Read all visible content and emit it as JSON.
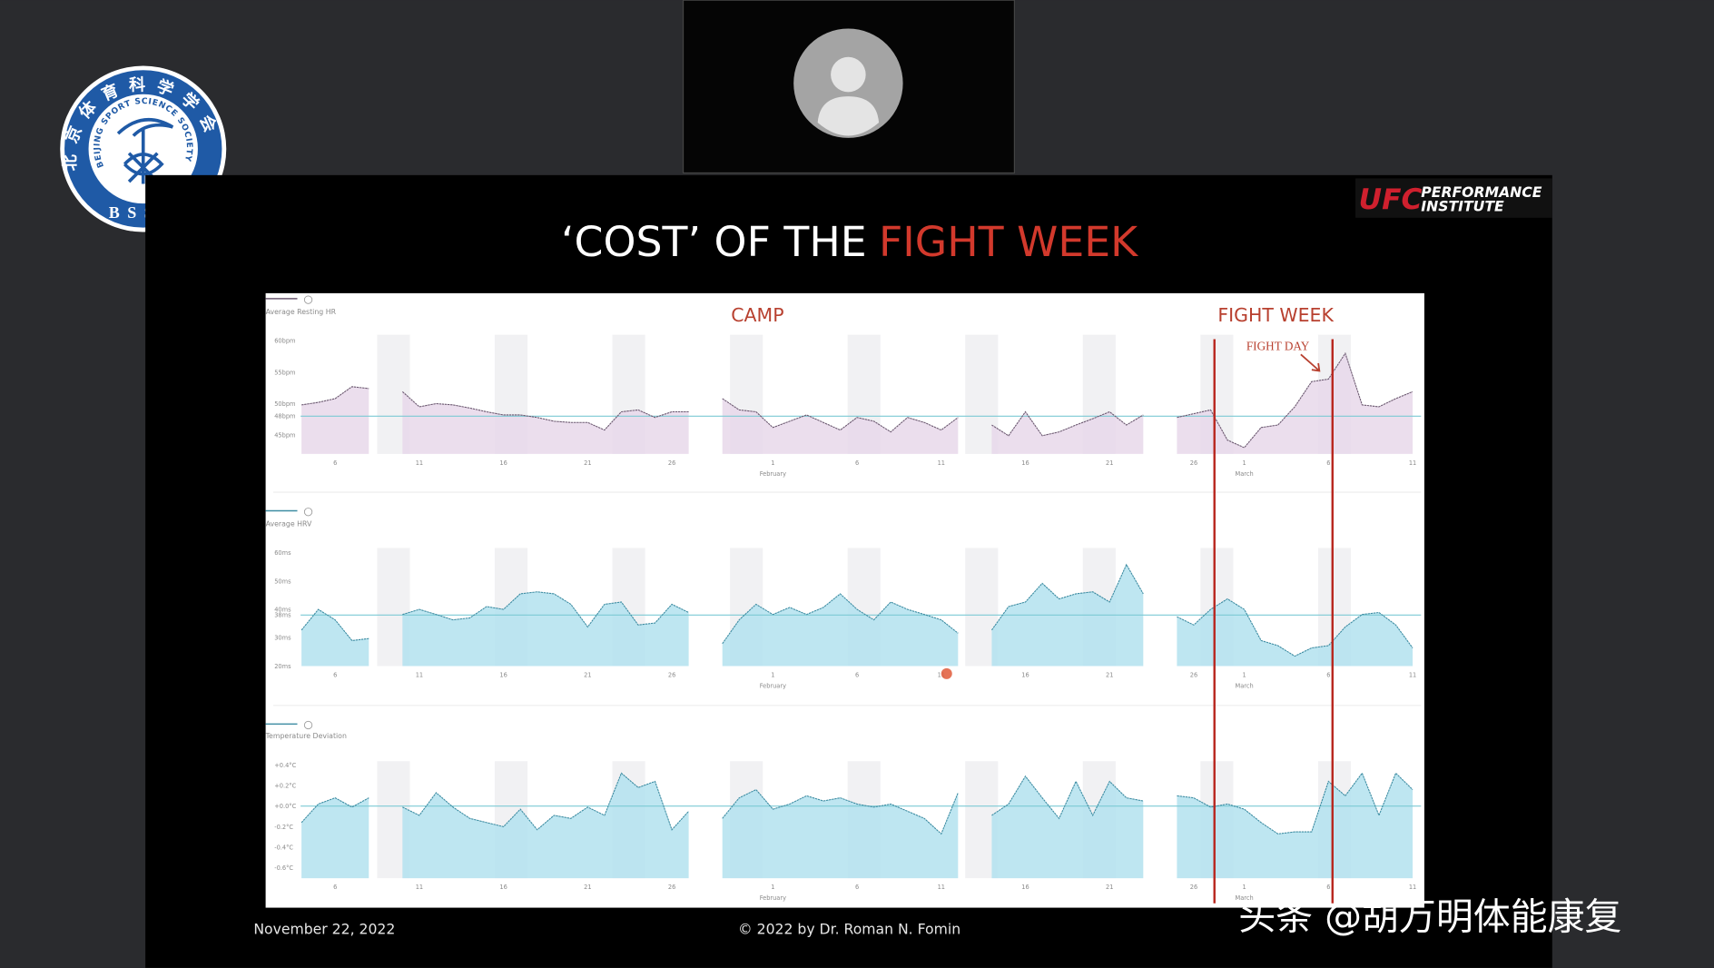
{
  "logo": {
    "chinese": "北京体育科学学会",
    "english": "BEIJING SPORT SCIENCE SOCIETY",
    "abbr": "BSSS"
  },
  "slide": {
    "brand": "UFC",
    "brand_line1": "PERFORMANCE",
    "brand_line2": "INSTITUTE",
    "title": "‘COST’ OF THE",
    "title_highlight": "FIGHT WEEK",
    "camp": "CAMP",
    "fight_week": "FIGHT WEEK",
    "fight_day": "FIGHT DAY",
    "date": "November 22, 2022",
    "copyright": "© 2022 by Dr. Roman N. Fomin"
  },
  "watermark": "头条 @胡万明体能康复",
  "chart_data": [
    {
      "type": "area",
      "title": "Average Resting HR",
      "color": "#e7d8ea",
      "line_color": "#6b5870",
      "reference": 48,
      "x": [
        4,
        5,
        6,
        7,
        8,
        9,
        10,
        11,
        12,
        13,
        14,
        15,
        16,
        17,
        18,
        19,
        20,
        21,
        22,
        23,
        24,
        25,
        26,
        27,
        28,
        29,
        30,
        31,
        32,
        33,
        34,
        35,
        36,
        37,
        38,
        39,
        40,
        41,
        42,
        43,
        44,
        45,
        46,
        47,
        48,
        49,
        50,
        51,
        52,
        53,
        54,
        55,
        56,
        57,
        58,
        59,
        60,
        61,
        62,
        63,
        64,
        65,
        66,
        67,
        68,
        69,
        70
      ],
      "values": [
        49.8,
        50.2,
        50.8,
        52.7,
        52.4,
        null,
        51.9,
        49.5,
        50,
        49.8,
        49.3,
        48.7,
        48.2,
        48.2,
        47.8,
        47.2,
        47,
        47,
        45.8,
        48.7,
        49,
        47.8,
        48.7,
        48.7,
        null,
        50.8,
        49,
        48.7,
        46.2,
        47.2,
        48.2,
        47,
        45.8,
        47.8,
        47.2,
        45.5,
        47.8,
        47,
        45.8,
        47.8,
        null,
        46.6,
        44.9,
        48.7,
        44.9,
        45.5,
        46.6,
        47.6,
        48.7,
        46.6,
        48.2,
        null,
        47.8,
        48.4,
        49,
        44.2,
        43,
        46.2,
        46.6,
        49.5,
        53.5,
        53.9,
        58,
        49.8,
        49.5,
        50.8,
        51.9
      ],
      "xlim": [
        2,
        70.5
      ],
      "ylim": [
        42,
        62
      ],
      "xticks": [
        6,
        11,
        16,
        21,
        26,
        {
          "value": 32,
          "label": "1"
        },
        {
          "value": 37,
          "label": "6"
        },
        {
          "value": 42,
          "label": "11"
        },
        {
          "value": 47,
          "label": "16"
        },
        {
          "value": 52,
          "label": "21"
        },
        {
          "value": 57,
          "label": "26"
        },
        {
          "value": 60,
          "label": "1"
        },
        {
          "value": 65,
          "label": "6"
        },
        {
          "value": 70,
          "label": "11"
        }
      ],
      "month_ticks": [
        {
          "value": 32,
          "label": "February"
        },
        {
          "value": 60,
          "label": "March"
        }
      ],
      "yticks": [
        {
          "value": 60,
          "label": "60bpm"
        },
        {
          "value": 55,
          "label": "55bpm"
        },
        {
          "value": 50,
          "label": "50bpm"
        },
        {
          "value": 48,
          "label": "48bpm"
        },
        {
          "value": 45,
          "label": "45bpm"
        }
      ]
    },
    {
      "type": "area",
      "title": "Average HRV",
      "color": "#b3e2ee",
      "line_color": "#3d8ca2",
      "reference": 38,
      "x": [
        4,
        5,
        6,
        7,
        8,
        9,
        10,
        11,
        12,
        13,
        14,
        15,
        16,
        17,
        18,
        19,
        20,
        21,
        22,
        23,
        24,
        25,
        26,
        27,
        28,
        29,
        30,
        31,
        32,
        33,
        34,
        35,
        36,
        37,
        38,
        39,
        40,
        41,
        42,
        43,
        44,
        45,
        46,
        47,
        48,
        49,
        50,
        51,
        52,
        53,
        54,
        55,
        56,
        57,
        58,
        59,
        60,
        61,
        62,
        63,
        64,
        65,
        66,
        67,
        68,
        69,
        70
      ],
      "values": [
        32.7,
        40,
        36.3,
        29,
        29.7,
        null,
        38.2,
        40,
        38.2,
        36.3,
        37,
        41,
        40,
        45.5,
        46.2,
        45.5,
        41.8,
        33.8,
        41.8,
        42.6,
        34.5,
        35.2,
        41.8,
        38.9,
        null,
        27.9,
        36.3,
        41.8,
        38.2,
        40.7,
        38.2,
        40.7,
        45.5,
        40,
        36.3,
        42.6,
        40,
        38.2,
        36.3,
        31.6,
        null,
        32.7,
        41,
        42.6,
        49.2,
        43.7,
        45.5,
        46.2,
        42.6,
        55.8,
        45.5,
        null,
        37.4,
        34.5,
        40,
        43.7,
        40,
        29,
        27.2,
        23.5,
        26.4,
        27.2,
        33.8,
        38.2,
        38.9,
        34.5,
        26.4
      ],
      "xlim": [
        2,
        70.5
      ],
      "ylim": [
        20,
        64
      ],
      "xticks": [
        6,
        11,
        16,
        21,
        26,
        {
          "value": 32,
          "label": "1"
        },
        {
          "value": 37,
          "label": "6"
        },
        {
          "value": 42,
          "label": "11"
        },
        {
          "value": 47,
          "label": "16"
        },
        {
          "value": 52,
          "label": "21"
        },
        {
          "value": 57,
          "label": "26"
        },
        {
          "value": 60,
          "label": "1"
        },
        {
          "value": 65,
          "label": "6"
        },
        {
          "value": 70,
          "label": "11"
        }
      ],
      "month_ticks": [
        {
          "value": 32,
          "label": "February"
        },
        {
          "value": 60,
          "label": "March"
        }
      ],
      "yticks": [
        {
          "value": 60,
          "label": "60ms"
        },
        {
          "value": 50,
          "label": "50ms"
        },
        {
          "value": 40,
          "label": "40ms"
        },
        {
          "value": 38,
          "label": "38ms"
        },
        {
          "value": 30,
          "label": "30ms"
        },
        {
          "value": 20,
          "label": "20ms"
        }
      ]
    },
    {
      "type": "area",
      "title": "Temperature Deviation",
      "color": "#b3e2ee",
      "line_color": "#3d8ca2",
      "reference": 0,
      "x": [
        4,
        5,
        6,
        7,
        8,
        9,
        10,
        11,
        12,
        13,
        14,
        15,
        16,
        17,
        18,
        19,
        20,
        21,
        22,
        23,
        24,
        25,
        26,
        27,
        28,
        29,
        30,
        31,
        32,
        33,
        34,
        35,
        36,
        37,
        38,
        39,
        40,
        41,
        42,
        43,
        44,
        45,
        46,
        47,
        48,
        49,
        50,
        51,
        52,
        53,
        54,
        55,
        56,
        57,
        58,
        59,
        60,
        61,
        62,
        63,
        64,
        65,
        66,
        67,
        68,
        69,
        70
      ],
      "values": [
        -0.16,
        0.02,
        0.08,
        -0.01,
        0.08,
        null,
        -0.01,
        -0.09,
        0.13,
        -0.01,
        -0.12,
        -0.16,
        -0.2,
        -0.03,
        -0.23,
        -0.09,
        -0.12,
        -0.01,
        -0.09,
        0.32,
        0.18,
        0.24,
        -0.23,
        -0.05,
        null,
        -0.12,
        0.08,
        0.16,
        -0.03,
        0.02,
        0.1,
        0.05,
        0.08,
        0.02,
        -0.01,
        0.02,
        -0.05,
        -0.12,
        -0.27,
        0.13,
        null,
        -0.09,
        0.02,
        0.29,
        0.08,
        -0.12,
        0.24,
        -0.09,
        0.24,
        0.08,
        0.05,
        null,
        0.1,
        0.08,
        -0.01,
        0.02,
        -0.03,
        -0.16,
        -0.27,
        -0.25,
        -0.25,
        0.24,
        0.1,
        0.32,
        -0.09,
        0.32,
        0.16
      ],
      "xlim": [
        2,
        70.5
      ],
      "ylim": [
        -0.7,
        0.5
      ],
      "xticks": [
        6,
        11,
        16,
        21,
        26,
        {
          "value": 32,
          "label": "1"
        },
        {
          "value": 37,
          "label": "6"
        },
        {
          "value": 42,
          "label": "11"
        },
        {
          "value": 47,
          "label": "16"
        },
        {
          "value": 52,
          "label": "21"
        },
        {
          "value": 57,
          "label": "26"
        },
        {
          "value": 60,
          "label": "1"
        },
        {
          "value": 65,
          "label": "6"
        },
        {
          "value": 70,
          "label": "11"
        }
      ],
      "month_ticks": [
        {
          "value": 32,
          "label": "February"
        },
        {
          "value": 60,
          "label": "March"
        }
      ],
      "yticks": [
        {
          "value": 0.4,
          "label": "+0.4°C"
        },
        {
          "value": 0.2,
          "label": "+0.2°C"
        },
        {
          "value": 0,
          "label": "+0.0°C"
        },
        {
          "value": -0.2,
          "label": "-0.2°C"
        },
        {
          "value": -0.4,
          "label": "-0.4°C"
        },
        {
          "value": -0.6,
          "label": "-0.6°C"
        }
      ]
    }
  ]
}
